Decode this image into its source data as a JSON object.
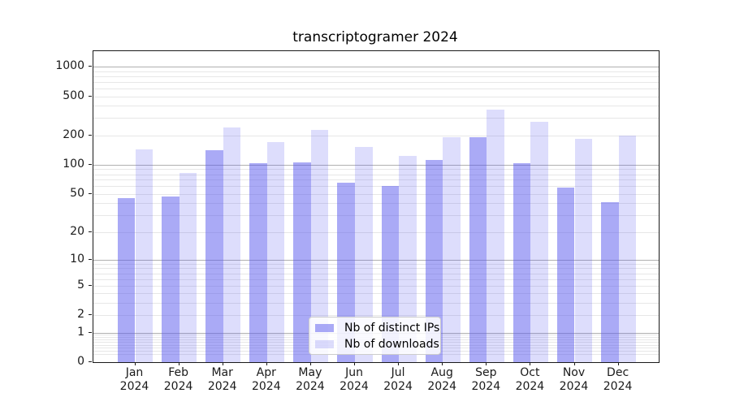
{
  "title": "transcriptogramer 2024",
  "colors": {
    "ip_bar": "rgba(85,85,238,0.5)",
    "dl_bar": "rgba(85,85,238,0.2)",
    "grid_major": "#b0b0b0",
    "grid_minor": "#e7e7e7",
    "spine": "#1a1a1a"
  },
  "legend": {
    "items": [
      {
        "label": "Nb of distinct IPs",
        "series": "ip_bar"
      },
      {
        "label": "Nb of downloads",
        "series": "dl_bar"
      }
    ]
  },
  "chart_data": {
    "type": "bar",
    "title": "transcriptogramer 2024",
    "categories": [
      "Jan",
      "Feb",
      "Mar",
      "Apr",
      "May",
      "Jun",
      "Jul",
      "Aug",
      "Sep",
      "Oct",
      "Nov",
      "Dec"
    ],
    "x_tick_year": "2024",
    "series": [
      {
        "name": "Nb of distinct IPs",
        "values": [
          45,
          47,
          140,
          103,
          106,
          65,
          60,
          111,
          192,
          104,
          58,
          41
        ]
      },
      {
        "name": "Nb of downloads",
        "values": [
          145,
          82,
          240,
          172,
          225,
          153,
          124,
          191,
          365,
          275,
          183,
          197
        ]
      }
    ],
    "yscale": "log1p",
    "y_ticks": [
      0,
      1,
      2,
      5,
      10,
      20,
      50,
      100,
      200,
      500,
      1000
    ],
    "ylim": [
      0,
      1420
    ],
    "grid": "both",
    "legend_position": "lower center"
  }
}
